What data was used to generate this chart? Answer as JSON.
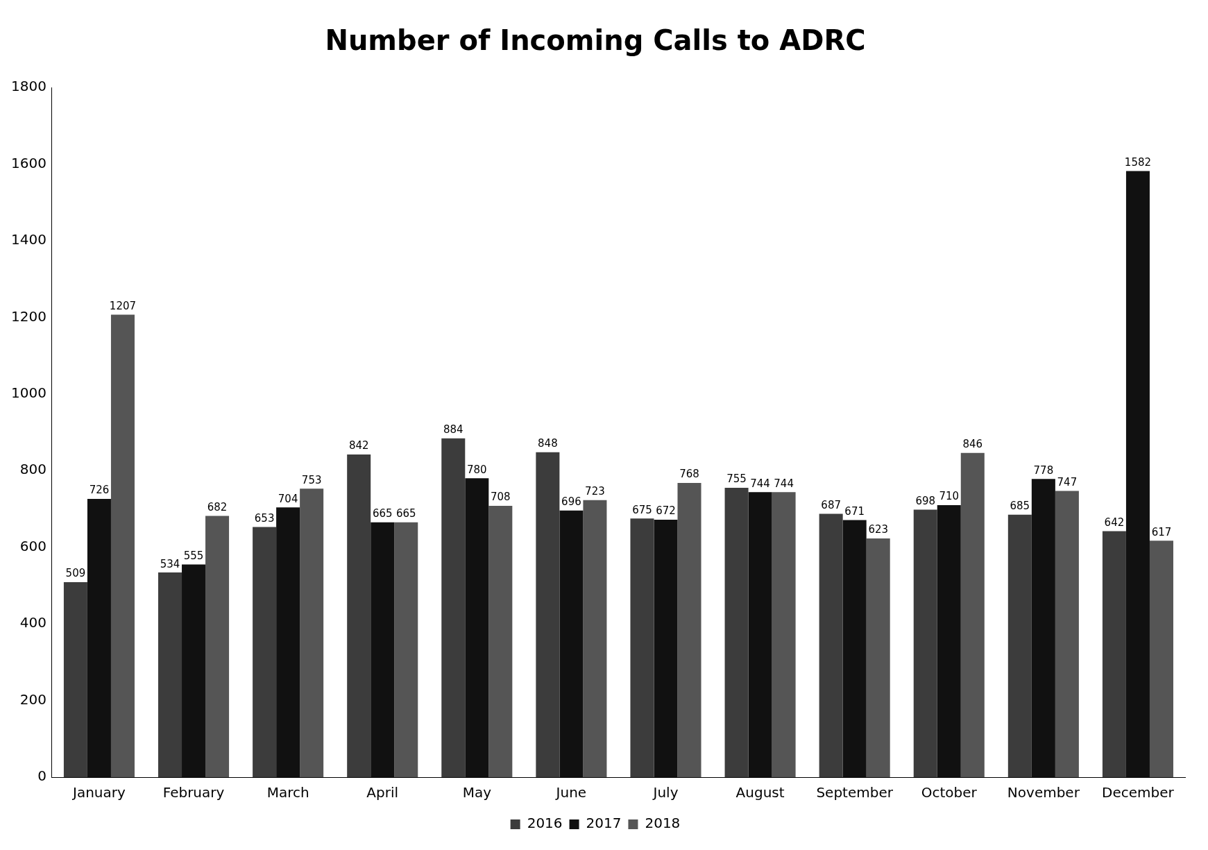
{
  "chart_data": {
    "type": "bar",
    "title": "Number of Incoming Calls to ADRC",
    "categories": [
      "January",
      "February",
      "March",
      "April",
      "May",
      "June",
      "July",
      "August",
      "September",
      "October",
      "November",
      "December"
    ],
    "series": [
      {
        "name": "2016",
        "color": "#3c3c3c",
        "values": [
          509,
          534,
          653,
          842,
          884,
          848,
          675,
          755,
          687,
          698,
          685,
          642
        ]
      },
      {
        "name": "2017",
        "color": "#111111",
        "values": [
          726,
          555,
          704,
          665,
          780,
          696,
          672,
          744,
          671,
          710,
          778,
          1582
        ]
      },
      {
        "name": "2018",
        "color": "#555555",
        "values": [
          1207,
          682,
          753,
          665,
          708,
          723,
          768,
          744,
          623,
          846,
          747,
          617
        ]
      }
    ],
    "ylim": [
      0,
      1800
    ],
    "yticks": [
      0,
      200,
      400,
      600,
      800,
      1000,
      1200,
      1400,
      1600,
      1800
    ],
    "grid": false,
    "legend": "bottom",
    "data_labels": true
  }
}
